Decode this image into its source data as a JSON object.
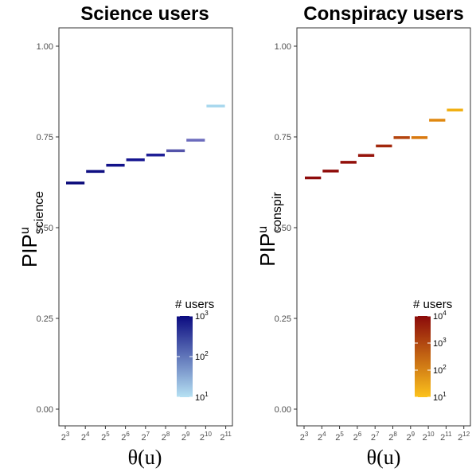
{
  "chart_data": [
    {
      "type": "segment",
      "title": "Science users",
      "ylabel_main": "PIP",
      "ylabel_sup": "u",
      "ylabel_sub": "science",
      "xlabel": "θ(u)",
      "ylim": [
        0,
        1.0
      ],
      "yticks": [
        "0.00",
        "0.25",
        "0.50",
        "0.75",
        "1.00"
      ],
      "ytick_values": [
        0,
        0.25,
        0.5,
        0.75,
        1.0
      ],
      "xticks": [
        {
          "base": "2",
          "exp": "3"
        },
        {
          "base": "2",
          "exp": "4"
        },
        {
          "base": "2",
          "exp": "5"
        },
        {
          "base": "2",
          "exp": "6"
        },
        {
          "base": "2",
          "exp": "7"
        },
        {
          "base": "2",
          "exp": "8"
        },
        {
          "base": "2",
          "exp": "9"
        },
        {
          "base": "2",
          "exp": "10"
        },
        {
          "base": "2",
          "exp": "11"
        }
      ],
      "x_exponents": [
        3,
        4,
        5,
        6,
        7,
        8,
        9,
        10,
        11
      ],
      "segments": [
        {
          "from_exp": 3,
          "to_exp": 4,
          "y": 0.623,
          "color": "#0a0a7a"
        },
        {
          "from_exp": 4,
          "to_exp": 5,
          "y": 0.655,
          "color": "#0e0e82"
        },
        {
          "from_exp": 5,
          "to_exp": 6,
          "y": 0.672,
          "color": "#12128a"
        },
        {
          "from_exp": 6,
          "to_exp": 7,
          "y": 0.687,
          "color": "#161690"
        },
        {
          "from_exp": 7,
          "to_exp": 8,
          "y": 0.7,
          "color": "#1f1f96"
        },
        {
          "from_exp": 8,
          "to_exp": 9,
          "y": 0.712,
          "color": "#5454aa"
        },
        {
          "from_exp": 9,
          "to_exp": 10,
          "y": 0.741,
          "color": "#6b6bbd"
        },
        {
          "from_exp": 10,
          "to_exp": 11,
          "y": 0.835,
          "color": "#a9d8ee"
        }
      ],
      "legend": {
        "title": "# users",
        "ticks": [
          {
            "base": "10",
            "exp": "3"
          },
          {
            "base": "10",
            "exp": "2"
          },
          {
            "base": "10",
            "exp": "1"
          }
        ],
        "tick_positions": [
          1.0,
          0.5,
          0.0
        ],
        "gradient_top": "#0b0b80",
        "gradient_bottom": "#b6e1f3"
      }
    },
    {
      "type": "segment",
      "title": "Conspiracy users",
      "ylabel_main": "PIP",
      "ylabel_sup": "u",
      "ylabel_sub": "conspir",
      "xlabel": "θ(u)",
      "ylim": [
        0,
        1.0
      ],
      "yticks": [
        "0.00",
        "0.25",
        "0.50",
        "0.75",
        "1.00"
      ],
      "ytick_values": [
        0,
        0.25,
        0.5,
        0.75,
        1.0
      ],
      "xticks": [
        {
          "base": "2",
          "exp": "3"
        },
        {
          "base": "2",
          "exp": "4"
        },
        {
          "base": "2",
          "exp": "5"
        },
        {
          "base": "2",
          "exp": "6"
        },
        {
          "base": "2",
          "exp": "7"
        },
        {
          "base": "2",
          "exp": "8"
        },
        {
          "base": "2",
          "exp": "9"
        },
        {
          "base": "2",
          "exp": "10"
        },
        {
          "base": "2",
          "exp": "11"
        },
        {
          "base": "2",
          "exp": "12"
        }
      ],
      "x_exponents": [
        3,
        4,
        5,
        6,
        7,
        8,
        9,
        10,
        11,
        12
      ],
      "segments": [
        {
          "from_exp": 3,
          "to_exp": 4,
          "y": 0.637,
          "color": "#8e0b0b"
        },
        {
          "from_exp": 4,
          "to_exp": 5,
          "y": 0.656,
          "color": "#8f0c0a"
        },
        {
          "from_exp": 5,
          "to_exp": 6,
          "y": 0.68,
          "color": "#920f0a"
        },
        {
          "from_exp": 6,
          "to_exp": 7,
          "y": 0.699,
          "color": "#96130a"
        },
        {
          "from_exp": 7,
          "to_exp": 8,
          "y": 0.725,
          "color": "#a2280c"
        },
        {
          "from_exp": 8,
          "to_exp": 9,
          "y": 0.748,
          "color": "#b4440e"
        },
        {
          "from_exp": 9,
          "to_exp": 10,
          "y": 0.748,
          "color": "#d9790f"
        },
        {
          "from_exp": 10,
          "to_exp": 11,
          "y": 0.796,
          "color": "#e08810"
        },
        {
          "from_exp": 11,
          "to_exp": 12,
          "y": 0.824,
          "color": "#f1b014"
        }
      ],
      "legend": {
        "title": "# users",
        "ticks": [
          {
            "base": "10",
            "exp": "4"
          },
          {
            "base": "10",
            "exp": "3"
          },
          {
            "base": "10",
            "exp": "2"
          },
          {
            "base": "10",
            "exp": "1"
          }
        ],
        "tick_positions": [
          1.0,
          0.6667,
          0.3333,
          0.0
        ],
        "gradient_top": "#8b0a0a",
        "gradient_bottom": "#fcc21c"
      }
    }
  ]
}
